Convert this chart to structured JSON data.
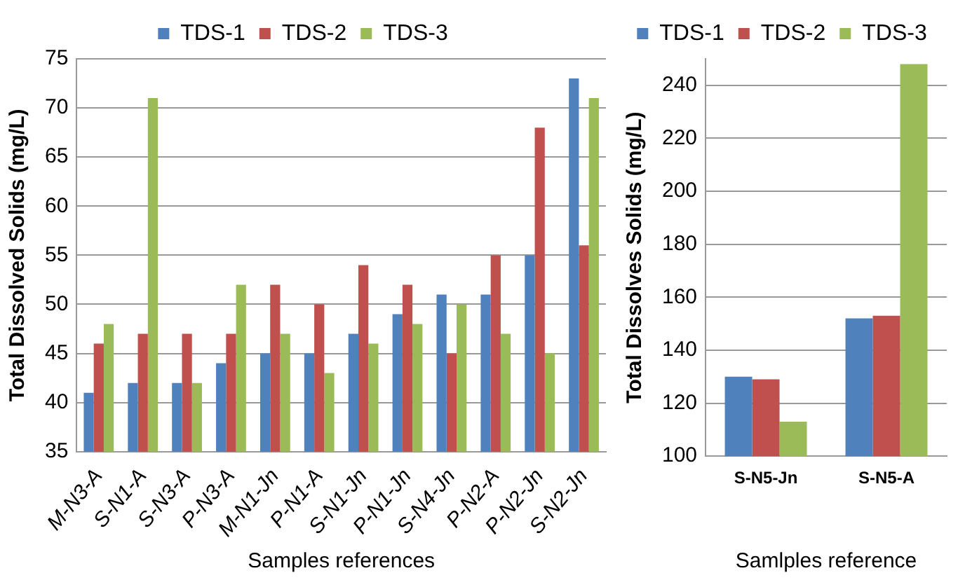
{
  "chart_data": [
    {
      "type": "bar",
      "xlabel": "Samples references",
      "ylabel": "Total Dissolved Solids (mg/L)",
      "categories": [
        "M-N3-A",
        "S-N1-A",
        "S-N3-A",
        "P-N3-A",
        "M-N1-Jn",
        "P-N1-A",
        "S-N1-Jn",
        "P-N1-Jn",
        "S-N4-Jn",
        "P-N2-A",
        "P-N2-Jn",
        "S-N2-Jn"
      ],
      "series": [
        {
          "name": "TDS-1",
          "color": "#4f81bd",
          "values": [
            41,
            42,
            42,
            44,
            45,
            45,
            47,
            49,
            51,
            51,
            55,
            73
          ]
        },
        {
          "name": "TDS-2",
          "color": "#c0504d",
          "values": [
            46,
            47,
            47,
            47,
            52,
            50,
            54,
            52,
            45,
            55,
            68,
            56
          ]
        },
        {
          "name": "TDS-3",
          "color": "#9bbb59",
          "values": [
            48,
            71,
            42,
            52,
            47,
            43,
            46,
            48,
            50,
            47,
            45,
            71
          ]
        }
      ],
      "ylim": [
        35,
        75
      ],
      "yticks": [
        35,
        40,
        45,
        50,
        55,
        60,
        65,
        70,
        75
      ],
      "grid": "y",
      "legend": "top"
    },
    {
      "type": "bar",
      "xlabel": "Samlples reference",
      "ylabel": "Total Dissolves Solids (mg/L)",
      "categories": [
        "S-N5-Jn",
        "S-N5-A"
      ],
      "series": [
        {
          "name": "TDS-1",
          "color": "#4f81bd",
          "values": [
            130,
            152
          ]
        },
        {
          "name": "TDS-2",
          "color": "#c0504d",
          "values": [
            129,
            153
          ]
        },
        {
          "name": "TDS-3",
          "color": "#9bbb59",
          "values": [
            113,
            248
          ]
        }
      ],
      "ylim": [
        100,
        250
      ],
      "yticks": [
        100,
        120,
        140,
        160,
        180,
        200,
        220,
        240
      ],
      "grid": "y",
      "legend": "top"
    }
  ]
}
